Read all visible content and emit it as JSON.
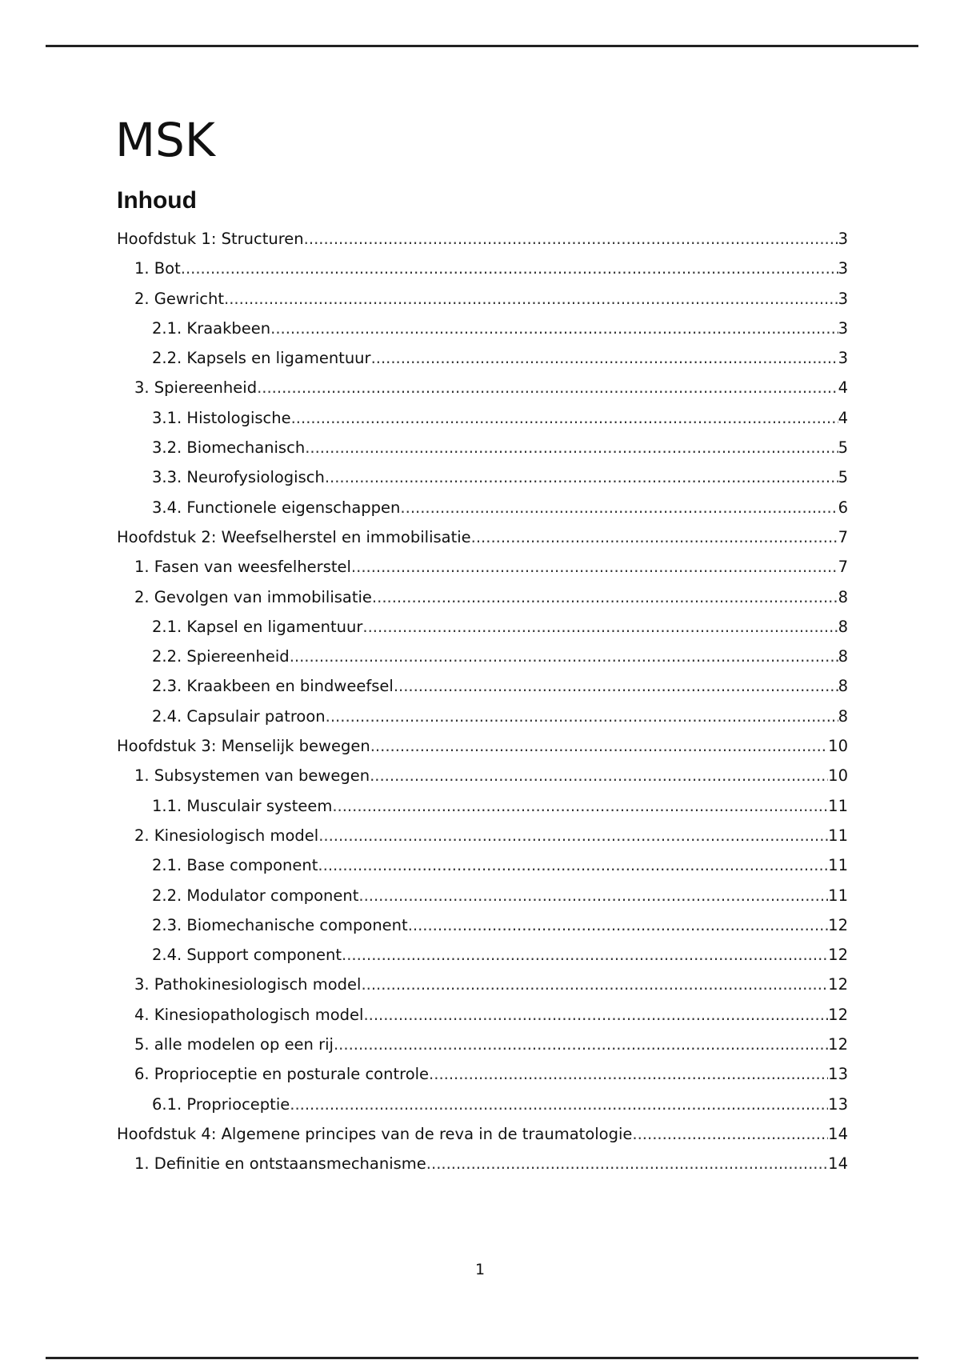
{
  "title": "MSK",
  "toc_heading": "Inhoud",
  "toc": [
    {
      "level": 0,
      "label": "Hoofdstuk 1: Structuren",
      "page": "3"
    },
    {
      "level": 1,
      "label": "1. Bot",
      "page": "3"
    },
    {
      "level": 1,
      "label": "2. Gewricht",
      "page": "3"
    },
    {
      "level": 2,
      "label": "2.1. Kraakbeen",
      "page": "3"
    },
    {
      "level": 2,
      "label": "2.2. Kapsels en ligamentuur",
      "page": "3"
    },
    {
      "level": 1,
      "label": "3. Spiereenheid",
      "page": "4"
    },
    {
      "level": 2,
      "label": "3.1. Histologische",
      "page": "4"
    },
    {
      "level": 2,
      "label": "3.2. Biomechanisch",
      "page": "5"
    },
    {
      "level": 2,
      "label": "3.3. Neurofysiologisch",
      "page": "5"
    },
    {
      "level": 2,
      "label": "3.4. Functionele eigenschappen",
      "page": "6"
    },
    {
      "level": 0,
      "label": "Hoofdstuk 2: Weefselherstel en immobilisatie",
      "page": "7"
    },
    {
      "level": 1,
      "label": "1. Fasen van weesfelherstel",
      "page": "7"
    },
    {
      "level": 1,
      "label": "2. Gevolgen van immobilisatie",
      "page": "8"
    },
    {
      "level": 2,
      "label": "2.1. Kapsel en ligamentuur",
      "page": "8"
    },
    {
      "level": 2,
      "label": "2.2. Spiereenheid",
      "page": "8"
    },
    {
      "level": 2,
      "label": "2.3. Kraakbeen en bindweefsel",
      "page": "8"
    },
    {
      "level": 2,
      "label": "2.4. Capsulair patroon",
      "page": "8"
    },
    {
      "level": 0,
      "label": "Hoofdstuk 3: Menselijk bewegen",
      "page": "10"
    },
    {
      "level": 1,
      "label": "1. Subsystemen van bewegen",
      "page": "10"
    },
    {
      "level": 2,
      "label": "1.1. Musculair systeem",
      "page": "11"
    },
    {
      "level": 1,
      "label": "2. Kinesiologisch model",
      "page": "11"
    },
    {
      "level": 2,
      "label": "2.1. Base component",
      "page": "11"
    },
    {
      "level": 2,
      "label": "2.2. Modulator component",
      "page": "11"
    },
    {
      "level": 2,
      "label": "2.3. Biomechanische component",
      "page": "12"
    },
    {
      "level": 2,
      "label": "2.4. Support component",
      "page": "12"
    },
    {
      "level": 1,
      "label": "3. Pathokinesiologisch model",
      "page": "12"
    },
    {
      "level": 1,
      "label": "4. Kinesiopathologisch model",
      "page": "12"
    },
    {
      "level": 1,
      "label": "5. alle modelen op een rij",
      "page": "12"
    },
    {
      "level": 1,
      "label": "6. Proprioceptie en posturale controle",
      "page": "13"
    },
    {
      "level": 2,
      "label": "6.1. Proprioceptie",
      "page": "13"
    },
    {
      "level": 0,
      "label": "Hoofdstuk 4: Algemene principes van de reva in de traumatologie",
      "page": "14"
    },
    {
      "level": 1,
      "label": "1. Definitie en ontstaansmechanisme",
      "page": "14"
    }
  ],
  "page_number": "1"
}
